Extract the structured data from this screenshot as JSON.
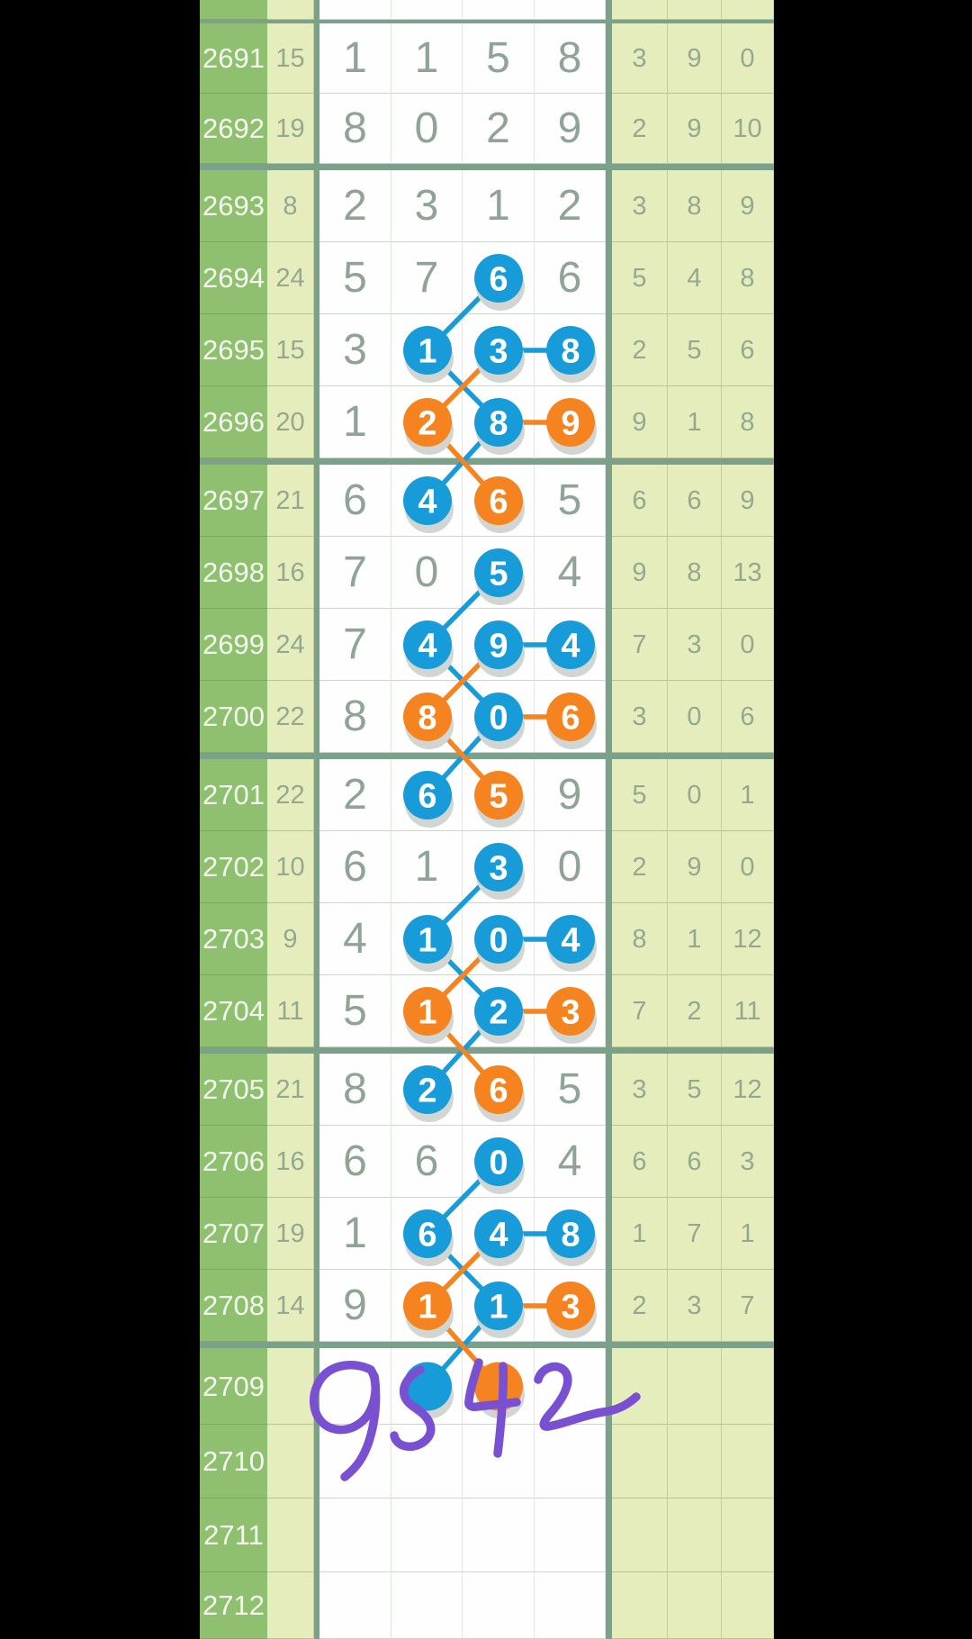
{
  "colors": {
    "period_green": "#8ec06f",
    "cell_tint": "#e5edbd",
    "cell_white": "#fdfefd",
    "border_green": "#7ca18a",
    "period_text": "#f4f8ee",
    "label_text": "#95a88e",
    "digit_text": "#8fa496",
    "blue": "#189bd9",
    "orange": "#f5831f",
    "purple": "#7a50d2",
    "circle_digit": "#ffffff",
    "circle_shadow": "#d2d6d2"
  },
  "annotation": {
    "text": "9542"
  },
  "rows": [
    {
      "period": "2691",
      "sum": "15",
      "digits": [
        {
          "v": "1",
          "c": null
        },
        {
          "v": "1",
          "c": null
        },
        {
          "v": "5",
          "c": null
        },
        {
          "v": "8",
          "c": null
        }
      ],
      "right": [
        "3",
        "9",
        "0"
      ]
    },
    {
      "period": "2692",
      "sum": "19",
      "digits": [
        {
          "v": "8",
          "c": null
        },
        {
          "v": "0",
          "c": null
        },
        {
          "v": "2",
          "c": null
        },
        {
          "v": "9",
          "c": null
        }
      ],
      "right": [
        "2",
        "9",
        "10"
      ]
    },
    {
      "period": "2693",
      "sum": "8",
      "digits": [
        {
          "v": "2",
          "c": null
        },
        {
          "v": "3",
          "c": null
        },
        {
          "v": "1",
          "c": null
        },
        {
          "v": "2",
          "c": null
        }
      ],
      "right": [
        "3",
        "8",
        "9"
      ]
    },
    {
      "period": "2694",
      "sum": "24",
      "digits": [
        {
          "v": "5",
          "c": null
        },
        {
          "v": "7",
          "c": null
        },
        {
          "v": "6",
          "c": "blue"
        },
        {
          "v": "6",
          "c": null
        }
      ],
      "right": [
        "5",
        "4",
        "8"
      ]
    },
    {
      "period": "2695",
      "sum": "15",
      "digits": [
        {
          "v": "3",
          "c": null
        },
        {
          "v": "1",
          "c": "blue"
        },
        {
          "v": "3",
          "c": "blue"
        },
        {
          "v": "8",
          "c": "blue"
        }
      ],
      "right": [
        "2",
        "5",
        "6"
      ]
    },
    {
      "period": "2696",
      "sum": "20",
      "digits": [
        {
          "v": "1",
          "c": null
        },
        {
          "v": "2",
          "c": "orange"
        },
        {
          "v": "8",
          "c": "blue"
        },
        {
          "v": "9",
          "c": "orange"
        }
      ],
      "right": [
        "9",
        "1",
        "8"
      ]
    },
    {
      "period": "2697",
      "sum": "21",
      "digits": [
        {
          "v": "6",
          "c": null
        },
        {
          "v": "4",
          "c": "blue"
        },
        {
          "v": "6",
          "c": "orange"
        },
        {
          "v": "5",
          "c": null
        }
      ],
      "right": [
        "6",
        "6",
        "9"
      ]
    },
    {
      "period": "2698",
      "sum": "16",
      "digits": [
        {
          "v": "7",
          "c": null
        },
        {
          "v": "0",
          "c": null
        },
        {
          "v": "5",
          "c": "blue"
        },
        {
          "v": "4",
          "c": null
        }
      ],
      "right": [
        "9",
        "8",
        "13"
      ]
    },
    {
      "period": "2699",
      "sum": "24",
      "digits": [
        {
          "v": "7",
          "c": null
        },
        {
          "v": "4",
          "c": "blue"
        },
        {
          "v": "9",
          "c": "blue"
        },
        {
          "v": "4",
          "c": "blue"
        }
      ],
      "right": [
        "7",
        "3",
        "0"
      ]
    },
    {
      "period": "2700",
      "sum": "22",
      "digits": [
        {
          "v": "8",
          "c": null
        },
        {
          "v": "8",
          "c": "orange"
        },
        {
          "v": "0",
          "c": "blue"
        },
        {
          "v": "6",
          "c": "orange"
        }
      ],
      "right": [
        "3",
        "0",
        "6"
      ]
    },
    {
      "period": "2701",
      "sum": "22",
      "digits": [
        {
          "v": "2",
          "c": null
        },
        {
          "v": "6",
          "c": "blue"
        },
        {
          "v": "5",
          "c": "orange"
        },
        {
          "v": "9",
          "c": null
        }
      ],
      "right": [
        "5",
        "0",
        "1"
      ]
    },
    {
      "period": "2702",
      "sum": "10",
      "digits": [
        {
          "v": "6",
          "c": null
        },
        {
          "v": "1",
          "c": null
        },
        {
          "v": "3",
          "c": "blue"
        },
        {
          "v": "0",
          "c": null
        }
      ],
      "right": [
        "2",
        "9",
        "0"
      ]
    },
    {
      "period": "2703",
      "sum": "9",
      "digits": [
        {
          "v": "4",
          "c": null
        },
        {
          "v": "1",
          "c": "blue"
        },
        {
          "v": "0",
          "c": "blue"
        },
        {
          "v": "4",
          "c": "blue"
        }
      ],
      "right": [
        "8",
        "1",
        "12"
      ]
    },
    {
      "period": "2704",
      "sum": "11",
      "digits": [
        {
          "v": "5",
          "c": null
        },
        {
          "v": "1",
          "c": "orange"
        },
        {
          "v": "2",
          "c": "blue"
        },
        {
          "v": "3",
          "c": "orange"
        }
      ],
      "right": [
        "7",
        "2",
        "11"
      ]
    },
    {
      "period": "2705",
      "sum": "21",
      "digits": [
        {
          "v": "8",
          "c": null
        },
        {
          "v": "2",
          "c": "blue"
        },
        {
          "v": "6",
          "c": "orange"
        },
        {
          "v": "5",
          "c": null
        }
      ],
      "right": [
        "3",
        "5",
        "12"
      ]
    },
    {
      "period": "2706",
      "sum": "16",
      "digits": [
        {
          "v": "6",
          "c": null
        },
        {
          "v": "6",
          "c": null
        },
        {
          "v": "0",
          "c": "blue"
        },
        {
          "v": "4",
          "c": null
        }
      ],
      "right": [
        "6",
        "6",
        "3"
      ]
    },
    {
      "period": "2707",
      "sum": "19",
      "digits": [
        {
          "v": "1",
          "c": null
        },
        {
          "v": "6",
          "c": "blue"
        },
        {
          "v": "4",
          "c": "blue"
        },
        {
          "v": "8",
          "c": "blue"
        }
      ],
      "right": [
        "1",
        "7",
        "1"
      ]
    },
    {
      "period": "2708",
      "sum": "14",
      "digits": [
        {
          "v": "9",
          "c": null
        },
        {
          "v": "1",
          "c": "orange"
        },
        {
          "v": "1",
          "c": "blue"
        },
        {
          "v": "3",
          "c": "orange"
        }
      ],
      "right": [
        "2",
        "3",
        "7"
      ]
    },
    {
      "period": "2709",
      "sum": "",
      "digits": [
        {
          "v": "",
          "c": null
        },
        {
          "v": "",
          "c": "blue"
        },
        {
          "v": "",
          "c": "orange"
        },
        {
          "v": "",
          "c": null
        }
      ],
      "right": [
        "",
        "",
        ""
      ]
    },
    {
      "period": "2710",
      "sum": "",
      "digits": [
        {
          "v": "",
          "c": null
        },
        {
          "v": "",
          "c": null
        },
        {
          "v": "",
          "c": null
        },
        {
          "v": "",
          "c": null
        }
      ],
      "right": [
        "",
        "",
        ""
      ]
    },
    {
      "period": "2711",
      "sum": "",
      "digits": [
        {
          "v": "",
          "c": null
        },
        {
          "v": "",
          "c": null
        },
        {
          "v": "",
          "c": null
        },
        {
          "v": "",
          "c": null
        }
      ],
      "right": [
        "",
        "",
        ""
      ]
    },
    {
      "period": "2712",
      "sum": "",
      "digits": [
        {
          "v": "",
          "c": null
        },
        {
          "v": "",
          "c": null
        },
        {
          "v": "",
          "c": null
        },
        {
          "v": "",
          "c": null
        }
      ],
      "right": [
        "",
        "",
        ""
      ]
    }
  ],
  "connections": [
    {
      "from": [
        "2694",
        2
      ],
      "to": [
        "2695",
        1
      ],
      "color": "blue"
    },
    {
      "from": [
        "2695",
        2
      ],
      "to": [
        "2695",
        3
      ],
      "color": "blue"
    },
    {
      "from": [
        "2695",
        1
      ],
      "to": [
        "2696",
        2
      ],
      "color": "blue"
    },
    {
      "from": [
        "2695",
        2
      ],
      "to": [
        "2696",
        1
      ],
      "color": "orange"
    },
    {
      "from": [
        "2696",
        2
      ],
      "to": [
        "2696",
        3
      ],
      "color": "orange"
    },
    {
      "from": [
        "2696",
        2
      ],
      "to": [
        "2697",
        1
      ],
      "color": "blue"
    },
    {
      "from": [
        "2696",
        1
      ],
      "to": [
        "2697",
        2
      ],
      "color": "orange"
    },
    {
      "from": [
        "2698",
        2
      ],
      "to": [
        "2699",
        1
      ],
      "color": "blue"
    },
    {
      "from": [
        "2699",
        2
      ],
      "to": [
        "2699",
        3
      ],
      "color": "blue"
    },
    {
      "from": [
        "2699",
        1
      ],
      "to": [
        "2700",
        2
      ],
      "color": "blue"
    },
    {
      "from": [
        "2699",
        2
      ],
      "to": [
        "2700",
        1
      ],
      "color": "orange"
    },
    {
      "from": [
        "2700",
        2
      ],
      "to": [
        "2700",
        3
      ],
      "color": "orange"
    },
    {
      "from": [
        "2700",
        2
      ],
      "to": [
        "2701",
        1
      ],
      "color": "blue"
    },
    {
      "from": [
        "2700",
        1
      ],
      "to": [
        "2701",
        2
      ],
      "color": "orange"
    },
    {
      "from": [
        "2702",
        2
      ],
      "to": [
        "2703",
        1
      ],
      "color": "blue"
    },
    {
      "from": [
        "2703",
        2
      ],
      "to": [
        "2703",
        3
      ],
      "color": "blue"
    },
    {
      "from": [
        "2703",
        1
      ],
      "to": [
        "2704",
        2
      ],
      "color": "blue"
    },
    {
      "from": [
        "2703",
        2
      ],
      "to": [
        "2704",
        1
      ],
      "color": "orange"
    },
    {
      "from": [
        "2704",
        2
      ],
      "to": [
        "2704",
        3
      ],
      "color": "orange"
    },
    {
      "from": [
        "2704",
        2
      ],
      "to": [
        "2705",
        1
      ],
      "color": "blue"
    },
    {
      "from": [
        "2704",
        1
      ],
      "to": [
        "2705",
        2
      ],
      "color": "orange"
    },
    {
      "from": [
        "2706",
        2
      ],
      "to": [
        "2707",
        1
      ],
      "color": "blue"
    },
    {
      "from": [
        "2707",
        2
      ],
      "to": [
        "2707",
        3
      ],
      "color": "blue"
    },
    {
      "from": [
        "2707",
        1
      ],
      "to": [
        "2708",
        2
      ],
      "color": "blue"
    },
    {
      "from": [
        "2707",
        2
      ],
      "to": [
        "2708",
        1
      ],
      "color": "orange"
    },
    {
      "from": [
        "2708",
        2
      ],
      "to": [
        "2708",
        3
      ],
      "color": "orange"
    },
    {
      "from": [
        "2708",
        2
      ],
      "to": [
        "2709",
        1
      ],
      "color": "blue"
    },
    {
      "from": [
        "2708",
        1
      ],
      "to": [
        "2709",
        2
      ],
      "color": "orange"
    }
  ]
}
